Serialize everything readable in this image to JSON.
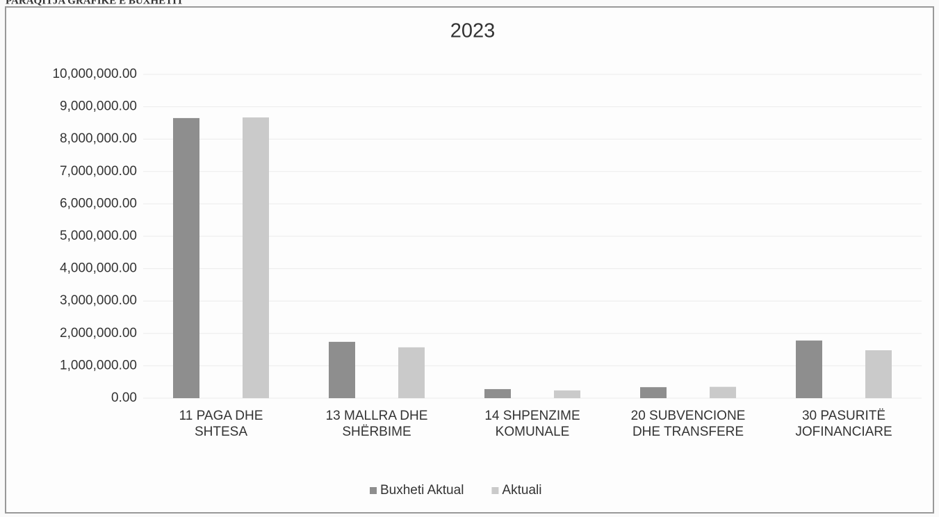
{
  "header": "PARAQITJA GRAFIKE E BUXHETIT",
  "chart_data": {
    "type": "bar",
    "title": "2023",
    "categories": [
      "11 PAGA DHE SHTESA",
      "13 MALLRA DHE SHËRBIME",
      "14 SHPENZIME KOMUNALE",
      "20 SUBVENCIONE DHE TRANSFERE",
      "30 PASURITË JOFINANCIARE"
    ],
    "series": [
      {
        "name": "Buxheti Aktual",
        "color": "#8e8e8e",
        "values": [
          8650000,
          1740000,
          280000,
          340000,
          1780000
        ]
      },
      {
        "name": "Aktuali",
        "color": "#cacaca",
        "values": [
          8670000,
          1570000,
          240000,
          350000,
          1480000
        ]
      }
    ],
    "ylim": [
      0,
      10000000
    ],
    "yticks": [
      {
        "value": 0,
        "label": "0.00"
      },
      {
        "value": 1000000,
        "label": "1,000,000.00"
      },
      {
        "value": 2000000,
        "label": "2,000,000.00"
      },
      {
        "value": 3000000,
        "label": "3,000,000.00"
      },
      {
        "value": 4000000,
        "label": "4,000,000.00"
      },
      {
        "value": 5000000,
        "label": "5,000,000.00"
      },
      {
        "value": 6000000,
        "label": "6,000,000.00"
      },
      {
        "value": 7000000,
        "label": "7,000,000.00"
      },
      {
        "value": 8000000,
        "label": "8,000,000.00"
      },
      {
        "value": 9000000,
        "label": "9,000,000.00"
      },
      {
        "value": 10000000,
        "label": "10,000,000.00"
      }
    ],
    "grid": true,
    "legend": "bottom"
  }
}
